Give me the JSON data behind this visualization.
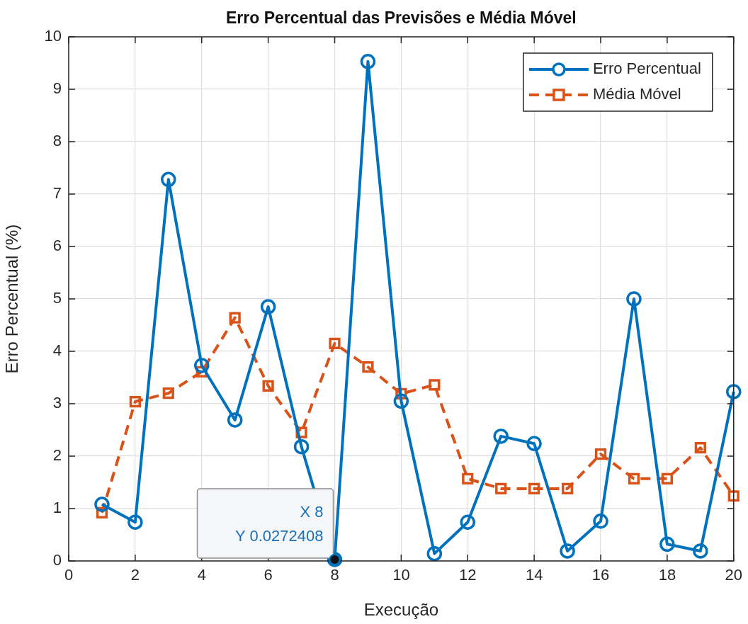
{
  "chart_data": {
    "type": "line",
    "title": "Erro Percentual das Previsões e Média Móvel",
    "xlabel": "Execução",
    "ylabel": "Erro Percentual (%)",
    "x": [
      1,
      2,
      3,
      4,
      5,
      6,
      7,
      8,
      9,
      10,
      11,
      12,
      13,
      14,
      15,
      16,
      17,
      18,
      19,
      20
    ],
    "series": [
      {
        "name": "Erro Percentual",
        "color": "#0072bd",
        "marker": "circle",
        "line_style": "solid",
        "values": [
          1.08,
          0.74,
          7.28,
          3.73,
          2.69,
          4.85,
          2.18,
          0.0272408,
          9.53,
          3.05,
          0.14,
          0.74,
          2.38,
          2.24,
          0.19,
          0.76,
          5.0,
          0.32,
          0.19,
          3.23
        ]
      },
      {
        "name": "Média Móvel",
        "color": "#d95319",
        "marker": "square",
        "line_style": "dashed",
        "values": [
          0.92,
          3.04,
          3.2,
          3.61,
          4.64,
          3.34,
          2.45,
          4.15,
          3.7,
          3.19,
          3.36,
          1.57,
          1.38,
          1.38,
          1.38,
          2.04,
          1.57,
          1.57,
          2.16,
          1.24
        ]
      }
    ],
    "xlim": [
      0,
      20
    ],
    "xticks": [
      0,
      2,
      4,
      6,
      8,
      10,
      12,
      14,
      16,
      18,
      20
    ],
    "ylim": [
      0,
      10
    ],
    "yticks": [
      0,
      1,
      2,
      3,
      4,
      5,
      6,
      7,
      8,
      9,
      10
    ],
    "grid": true,
    "legend": "top right",
    "annotations": [
      {
        "text": "X 8\nY 0.0272408",
        "x": 8,
        "y": 0.0272408
      }
    ]
  }
}
